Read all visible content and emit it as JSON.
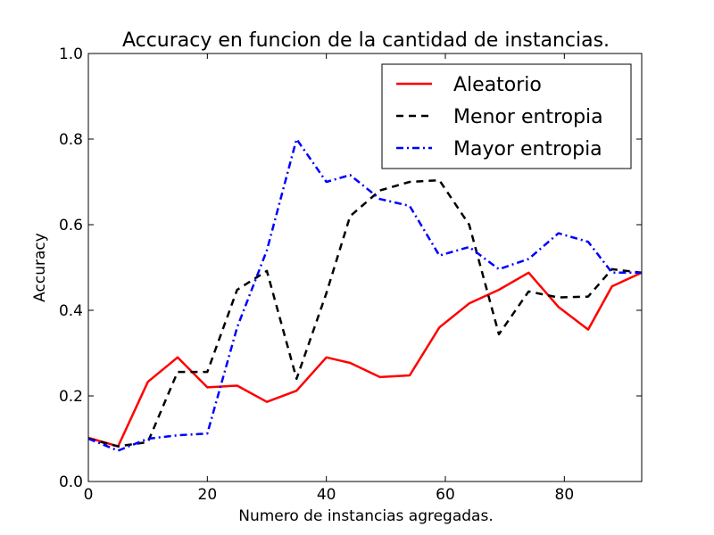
{
  "chart_data": {
    "type": "line",
    "title": "Accuracy en funcion de la cantidad de instancias.",
    "xlabel": "Numero de instancias agregadas.",
    "ylabel": "Accuracy",
    "xlim": [
      0,
      93
    ],
    "ylim": [
      0.0,
      1.0
    ],
    "xticks": [
      0,
      20,
      40,
      60,
      80
    ],
    "xtick_labels": [
      "0",
      "20",
      "40",
      "60",
      "80"
    ],
    "yticks": [
      0.0,
      0.2,
      0.4,
      0.6,
      0.8,
      1.0
    ],
    "ytick_labels": [
      "0.0",
      "0.2",
      "0.4",
      "0.6",
      "0.8",
      "1.0"
    ],
    "grid": false,
    "legend_position": "top-right",
    "series": [
      {
        "name": "Aleatorio",
        "color": "#ff0000",
        "style": "solid",
        "x": [
          0,
          5,
          10,
          15,
          20,
          25,
          30,
          35,
          40,
          44,
          49,
          54,
          59,
          64,
          69,
          74,
          79,
          84,
          88,
          93
        ],
        "y": [
          0.102,
          0.082,
          0.233,
          0.29,
          0.22,
          0.224,
          0.186,
          0.212,
          0.29,
          0.277,
          0.244,
          0.248,
          0.36,
          0.416,
          0.448,
          0.488,
          0.408,
          0.355,
          0.456,
          0.488
        ]
      },
      {
        "name": "Menor entropia",
        "color": "#000000",
        "style": "dashed",
        "x": [
          0,
          5,
          10,
          15,
          20,
          25,
          30,
          35,
          40,
          44,
          49,
          54,
          59,
          64,
          69,
          74,
          79,
          84,
          88,
          93
        ],
        "y": [
          0.1,
          0.082,
          0.092,
          0.256,
          0.256,
          0.448,
          0.492,
          0.24,
          0.44,
          0.62,
          0.68,
          0.7,
          0.704,
          0.6,
          0.344,
          0.444,
          0.43,
          0.432,
          0.496,
          0.488
        ]
      },
      {
        "name": "Mayor entropia",
        "color": "#0000ff",
        "style": "dashdot",
        "x": [
          0,
          5,
          10,
          15,
          20,
          25,
          30,
          35,
          40,
          44,
          49,
          54,
          59,
          64,
          69,
          74,
          79,
          84,
          88,
          93
        ],
        "y": [
          0.1,
          0.072,
          0.1,
          0.108,
          0.112,
          0.36,
          0.54,
          0.8,
          0.7,
          0.716,
          0.66,
          0.644,
          0.528,
          0.548,
          0.496,
          0.52,
          0.58,
          0.56,
          0.488,
          0.488
        ]
      }
    ]
  }
}
